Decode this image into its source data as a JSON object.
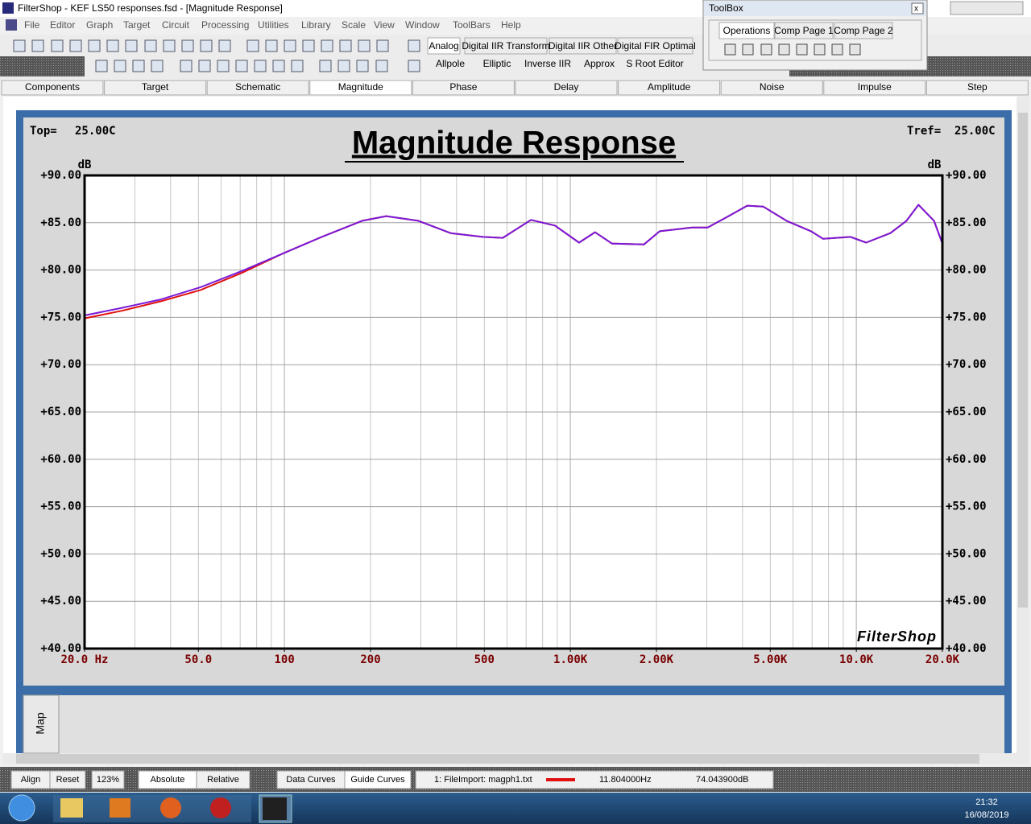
{
  "window": {
    "title": "FilterShop - KEF LS50 responses.fsd - [Magnitude Response]",
    "menu": [
      "File",
      "Editor",
      "Graph",
      "Target",
      "Circuit",
      "Processing",
      "Utilities",
      "Library",
      "Scale",
      "View",
      "Window",
      "ToolBars",
      "Help"
    ],
    "design_tabs": [
      "Analog",
      "Digital IIR Transform",
      "Digital IIR Other",
      "Digital FIR Optimal"
    ],
    "filter_types": [
      "Allpole",
      "Elliptic",
      "Inverse IIR",
      "Approx",
      "S Root Editor"
    ],
    "toolbox": {
      "title": "ToolBox",
      "tabs": [
        "Operations",
        "Comp Page 1",
        "Comp Page 2"
      ]
    },
    "view_tabs": [
      "Components",
      "Target",
      "Schematic",
      "Magnitude",
      "Phase",
      "Delay",
      "Amplitude",
      "Noise",
      "Impulse",
      "Step"
    ],
    "map_label": "Map",
    "status": {
      "buttons": [
        "Align",
        "Reset"
      ],
      "zoom": "123%",
      "mode": [
        "Absolute",
        "Relative"
      ],
      "curves": [
        "Data Curves",
        "Guide Curves"
      ],
      "file": "1: FileImport: magph1.txt",
      "frequency": "11.804000Hz",
      "level": "74.043900dB"
    },
    "taskbar": {
      "time": "21:32",
      "date": "16/08/2019"
    }
  },
  "chart_data": {
    "type": "line",
    "title": "Magnitude Response",
    "top_label": "Top=",
    "top_value": "25.00C",
    "tref_label": "Tref=",
    "tref_value": "25.00C",
    "y_unit": "dB",
    "watermark": "FilterShop",
    "x": [
      20,
      27,
      37,
      51,
      71,
      98,
      135,
      187,
      227,
      294,
      381,
      494,
      580,
      728,
      883,
      1072,
      1219,
      1398,
      1807,
      2052,
      2660,
      3020,
      3430,
      4155,
      4730,
      5700,
      6950,
      7650,
      9550,
      10820,
      13150,
      14980,
      16500,
      18700,
      20000
    ],
    "series": [
      {
        "color": "#e01010",
        "values": [
          74.9,
          75.7,
          76.7,
          77.9,
          79.7,
          81.7,
          83.5,
          85.2,
          85.7,
          85.2,
          83.9,
          83.5,
          83.4,
          85.3,
          84.7,
          82.9,
          84.0,
          82.8,
          82.7,
          84.1,
          84.5,
          84.5,
          85.4,
          86.8,
          86.7,
          85.2,
          84.1,
          83.3,
          83.5,
          82.9,
          83.9,
          85.2,
          86.9,
          85.2,
          82.8
        ]
      },
      {
        "color": "#7a1ad8",
        "values": [
          75.2,
          76.0,
          76.9,
          78.2,
          79.9,
          81.7,
          83.5,
          85.2,
          85.7,
          85.2,
          83.9,
          83.5,
          83.4,
          85.3,
          84.7,
          82.9,
          84.0,
          82.8,
          82.7,
          84.1,
          84.5,
          84.5,
          85.4,
          86.8,
          86.7,
          85.2,
          84.1,
          83.3,
          83.5,
          82.9,
          83.9,
          85.2,
          86.9,
          85.2,
          82.8
        ]
      }
    ],
    "xlim": [
      20,
      20000
    ],
    "ylim": [
      40,
      90
    ],
    "log_x": true,
    "grid": true,
    "xticks": [
      {
        "value": 20,
        "label": "20.0 Hz"
      },
      {
        "value": 50,
        "label": "50.0"
      },
      100,
      200,
      500,
      {
        "value": 1000,
        "label": "1.00K"
      },
      {
        "value": 2000,
        "label": "2.00K"
      },
      {
        "value": 5000,
        "label": "5.00K"
      },
      {
        "value": 10000,
        "label": "10.0K"
      },
      {
        "value": 20000,
        "label": "20.0K"
      }
    ],
    "yticks": [
      {
        "value": 90,
        "label": "+90.00"
      },
      {
        "value": 85,
        "label": "+85.00"
      },
      {
        "value": 80,
        "label": "+80.00"
      },
      {
        "value": 75,
        "label": "+75.00"
      },
      {
        "value": 70,
        "label": "+70.00"
      },
      {
        "value": 65,
        "label": "+65.00"
      },
      {
        "value": 60,
        "label": "+60.00"
      },
      {
        "value": 55,
        "label": "+55.00"
      },
      {
        "value": 50,
        "label": "+50.00"
      },
      {
        "value": 45,
        "label": "+45.00"
      },
      {
        "value": 40,
        "label": "+40.00"
      }
    ]
  }
}
